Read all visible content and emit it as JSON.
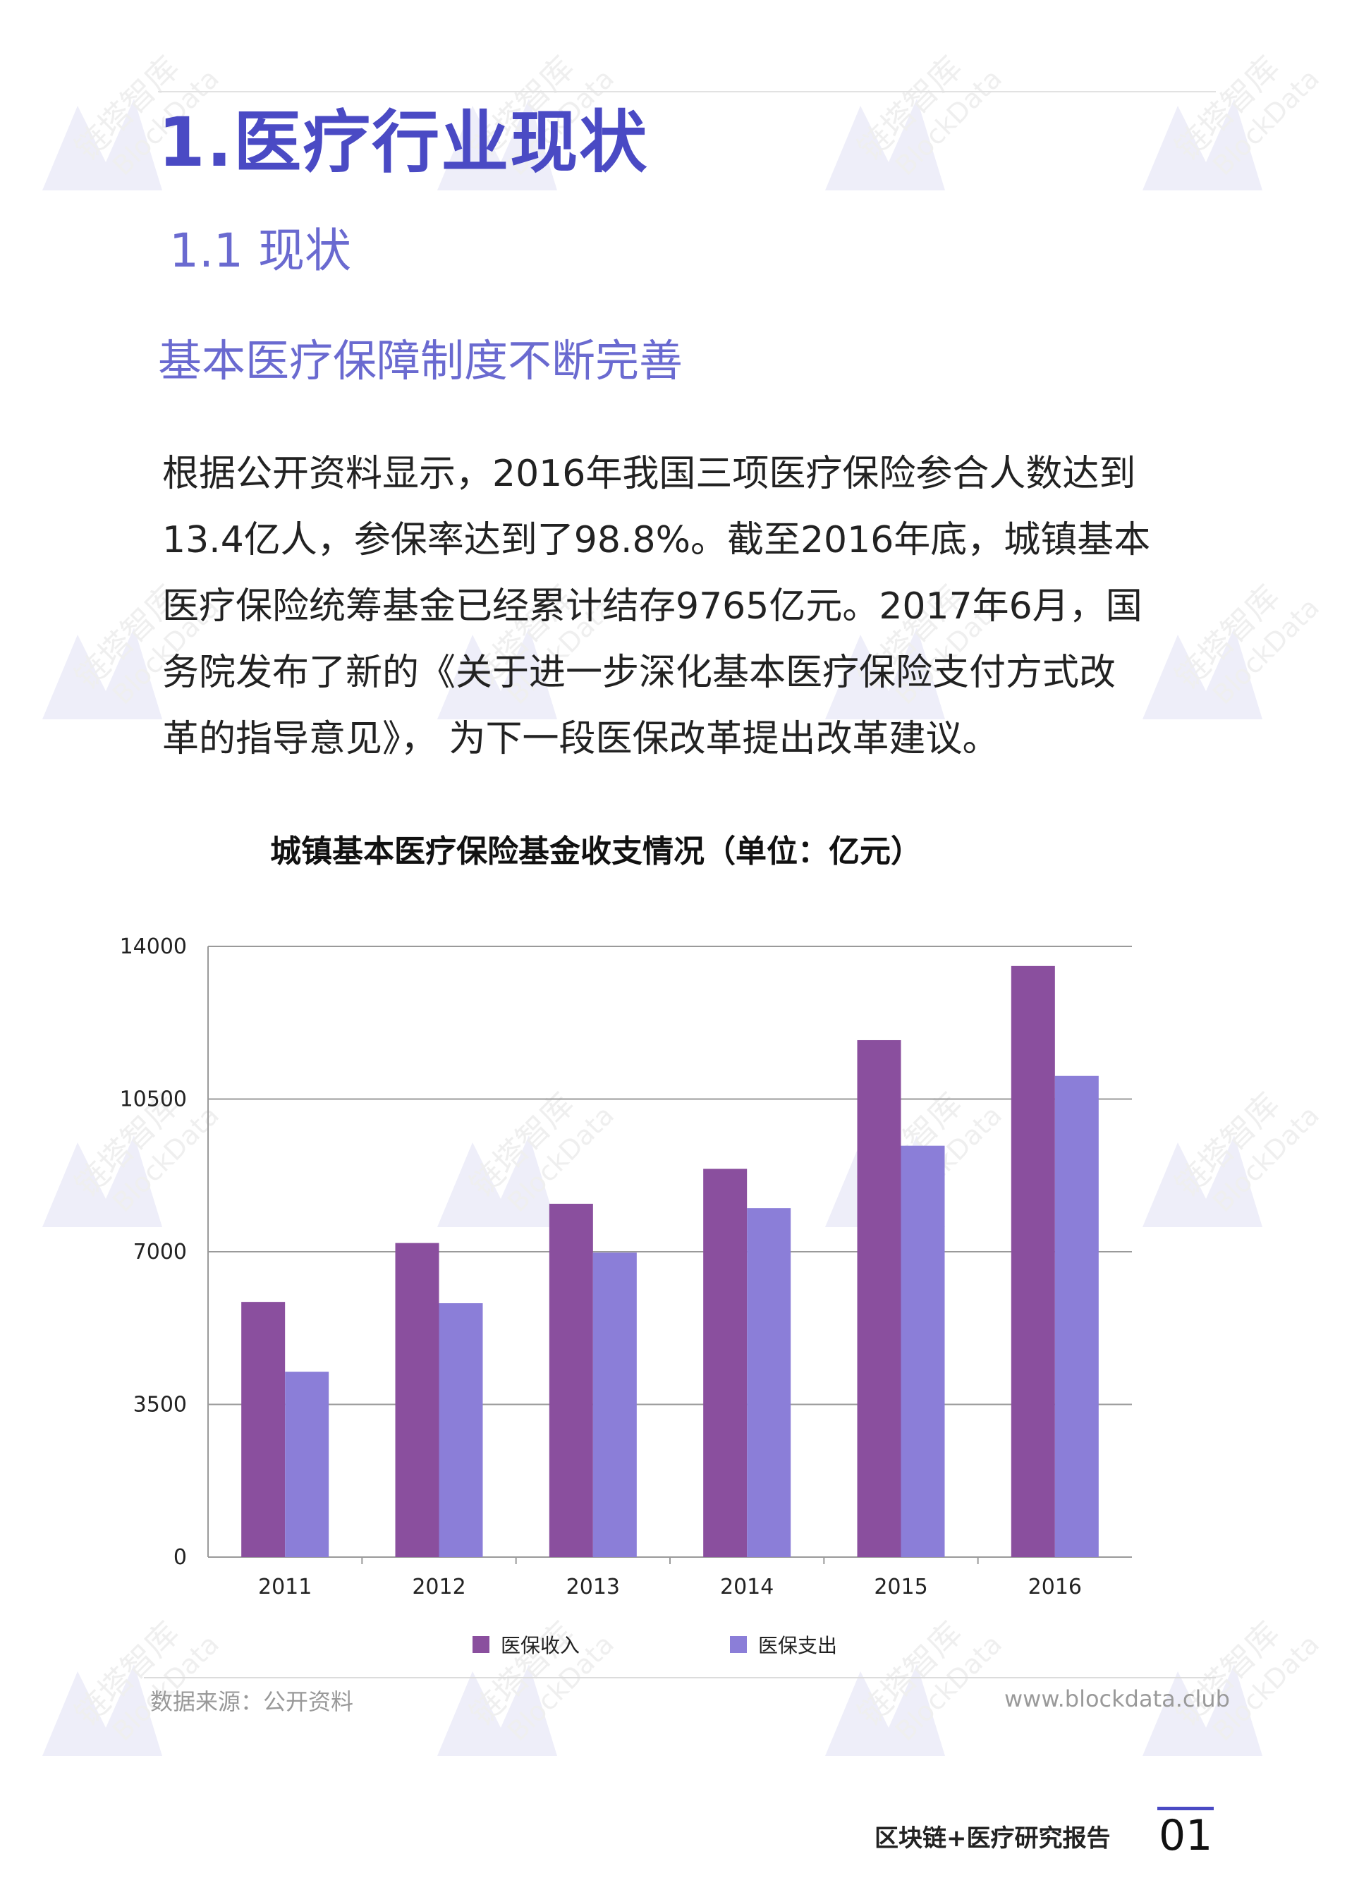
{
  "heading": {
    "section_title": "1.医疗行业现状",
    "subsection_title": "1.1 现状",
    "topic_title": "基本医疗保障制度不断完善"
  },
  "paragraph": {
    "lines": [
      "根据公开资料显示，2016年我国三项医疗保险参合人数达到",
      "13.4亿人，参保率达到了98.8%。截至2016年底，城镇基本",
      "医疗保险统筹基金已经累计结存9765亿元。2017年6月，国",
      "务院发布了新的《关于进一步深化基本医疗保险支付方式改",
      "革的指导意见》， 为下一段医保改革提出改革建议。"
    ]
  },
  "chart_data": {
    "type": "bar",
    "title": "城镇基本医疗保险基金收支情况（单位：亿元）",
    "xlabel": "",
    "ylabel": "",
    "categories": [
      "2011",
      "2012",
      "2013",
      "2014",
      "2015",
      "2016"
    ],
    "series": [
      {
        "name": "医保收入",
        "values": [
          5850,
          7200,
          8100,
          8900,
          11850,
          13550
        ],
        "color": "#8a4f9e"
      },
      {
        "name": "医保支出",
        "values": [
          4250,
          5820,
          6980,
          8000,
          9430,
          11030
        ],
        "color": "#8b7ed8"
      }
    ],
    "ylim": [
      0,
      14000
    ],
    "y_ticks": [
      "0",
      "3500",
      "7000",
      "10500",
      "14000"
    ],
    "grid": true,
    "legend_position": "bottom"
  },
  "footer": {
    "source": "数据来源：公开资料",
    "website": "www.blockdata.club",
    "report_name": "区块链+医疗研究报告",
    "page_number": "01"
  },
  "watermark": {
    "text_cn": "链塔智库",
    "text_en": "BlockData"
  },
  "colors": {
    "accent": "#4a4ac4",
    "subheading": "#6a6ad0"
  }
}
